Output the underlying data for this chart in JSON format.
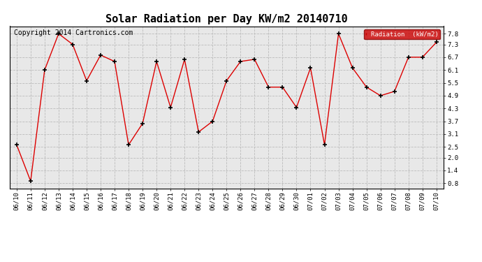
{
  "title": "Solar Radiation per Day KW/m2 20140710",
  "copyright_text": "Copyright 2014 Cartronics.com",
  "legend_label": "Radiation  (kW/m2)",
  "dates": [
    "06/10",
    "06/11",
    "06/12",
    "06/13",
    "06/14",
    "06/15",
    "06/16",
    "06/17",
    "06/18",
    "06/19",
    "06/20",
    "06/21",
    "06/22",
    "06/23",
    "06/24",
    "06/25",
    "06/26",
    "06/27",
    "06/28",
    "06/29",
    "06/30",
    "07/01",
    "07/02",
    "07/03",
    "07/04",
    "07/05",
    "07/06",
    "07/07",
    "07/08",
    "07/09",
    "07/10"
  ],
  "values": [
    2.6,
    0.9,
    6.1,
    7.8,
    7.3,
    5.6,
    6.8,
    6.5,
    2.6,
    3.6,
    6.5,
    4.35,
    6.6,
    3.2,
    3.7,
    5.6,
    6.5,
    6.6,
    5.3,
    5.3,
    4.35,
    6.2,
    2.6,
    7.8,
    6.2,
    5.3,
    4.9,
    5.1,
    6.7,
    6.7,
    7.4
  ],
  "line_color": "#dd0000",
  "marker_color": "#000000",
  "bg_color": "#ffffff",
  "plot_bg_color": "#e8e8e8",
  "grid_color": "#bbbbbb",
  "yticks": [
    0.8,
    1.4,
    2.0,
    2.5,
    3.1,
    3.7,
    4.3,
    4.9,
    5.5,
    6.1,
    6.7,
    7.3,
    7.8
  ],
  "ylim": [
    0.55,
    8.15
  ],
  "legend_bg": "#cc0000",
  "legend_text_color": "#ffffff",
  "title_fontsize": 11,
  "tick_fontsize": 6.5,
  "copyright_fontsize": 7
}
